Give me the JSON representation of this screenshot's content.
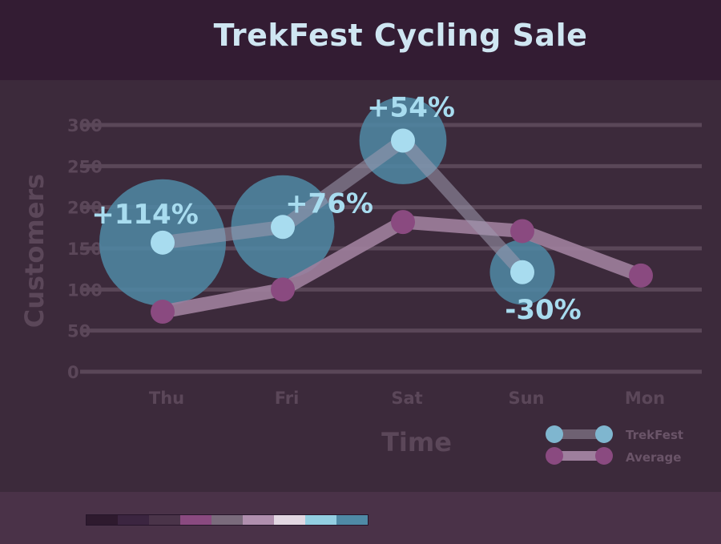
{
  "title": "TrekFest Cycling Sale",
  "colors": {
    "header_bg": "#331c33",
    "plot_bg": "#3c2a3b",
    "footer_bg": "#4a3248",
    "trekfest_line": "#6e6172",
    "trekfest_point": "#a8dcef",
    "trekfest_bubble": "#4f8aa6",
    "average_line": "#9e7f9d",
    "average_point": "#8a4a80",
    "grid": "#5a4758"
  },
  "palette": [
    "#2e1a2e",
    "#3b2540",
    "#4a3449",
    "#8a4a80",
    "#7a6b7c",
    "#b08fae",
    "#e2d7e2",
    "#93cfe2",
    "#4f8aa6"
  ],
  "chart_data": {
    "type": "line",
    "title": "TrekFest Cycling Sale",
    "xlabel": "Time",
    "ylabel": "Customers",
    "categories": [
      "Thu",
      "Fri",
      "Sat",
      "Sun",
      "Mon"
    ],
    "ylim": [
      0,
      300
    ],
    "yticks": [
      0,
      50,
      100,
      150,
      200,
      250,
      300
    ],
    "grid": true,
    "legend_position": "bottom-right",
    "series": [
      {
        "name": "TrekFest",
        "values": [
          157,
          176,
          281,
          121,
          null
        ]
      },
      {
        "name": "Average",
        "values": [
          73,
          100,
          182,
          171,
          117
        ]
      }
    ],
    "annotations": [
      {
        "category": "Thu",
        "label": "+114%",
        "magnitude": 114
      },
      {
        "category": "Fri",
        "label": "+76%",
        "magnitude": 76
      },
      {
        "category": "Sat",
        "label": "+54%",
        "magnitude": 54
      },
      {
        "category": "Sun",
        "label": "-30%",
        "magnitude": 30
      }
    ]
  }
}
